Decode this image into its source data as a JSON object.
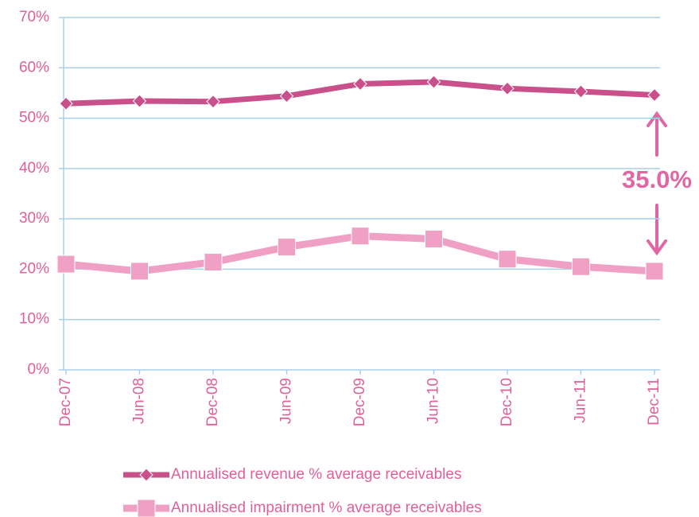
{
  "chart_data": {
    "type": "line",
    "categories": [
      "Dec-07",
      "Jun-08",
      "Dec-08",
      "Jun-09",
      "Dec-09",
      "Jun-10",
      "Dec-10",
      "Jun-11",
      "Dec-11"
    ],
    "series": [
      {
        "name": "Annualised revenue % average receivables",
        "color": "#c9508a",
        "marker": "diamond",
        "values": [
          52.9,
          53.4,
          53.3,
          54.4,
          56.8,
          57.2,
          55.9,
          55.3,
          54.6
        ]
      },
      {
        "name": "Annualised impairment % average receivables",
        "color": "#f0a0c4",
        "marker": "square",
        "values": [
          21.0,
          19.6,
          21.4,
          24.4,
          26.6,
          26.0,
          22.0,
          20.5,
          19.6
        ]
      }
    ],
    "ylim": [
      0,
      70
    ],
    "yticks": [
      {
        "value": 0,
        "label": "0%"
      },
      {
        "value": 10,
        "label": "10%"
      },
      {
        "value": 20,
        "label": "20%"
      },
      {
        "value": 30,
        "label": "30%"
      },
      {
        "value": 40,
        "label": "40%"
      },
      {
        "value": 50,
        "label": "50%"
      },
      {
        "value": 60,
        "label": "60%"
      },
      {
        "value": 70,
        "label": "70%"
      }
    ],
    "grid": true,
    "annotation": "35.0%"
  }
}
